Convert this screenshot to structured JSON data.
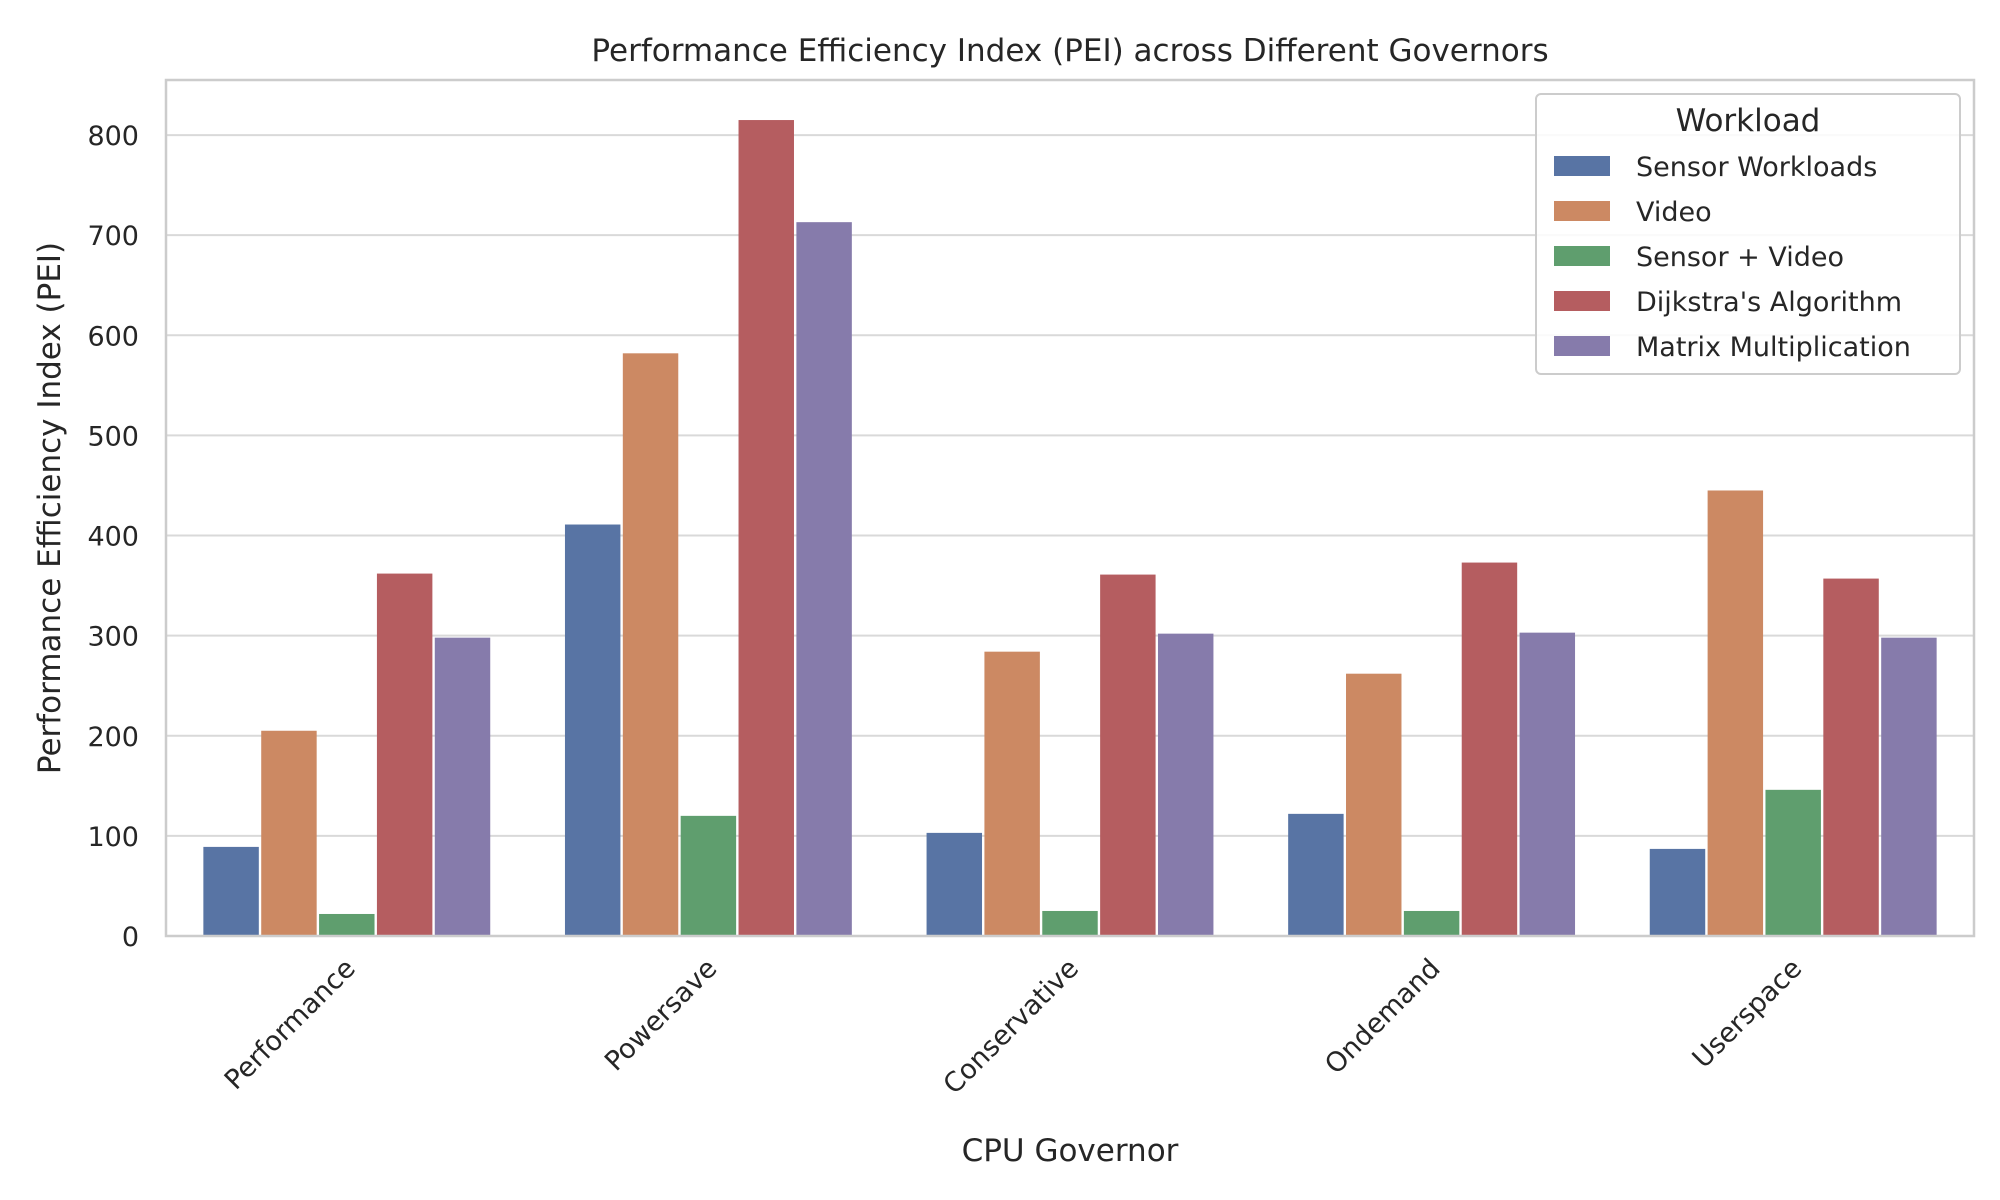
{
  "chart_data": {
    "type": "bar",
    "title": "Performance Efficiency Index (PEI) across Different Governors",
    "xlabel": "CPU Governor",
    "ylabel": "Performance Efficiency Index (PEI)",
    "categories": [
      "Performance",
      "Powersave",
      "Conservative",
      "Ondemand",
      "Userspace"
    ],
    "ylim": [
      0,
      855
    ],
    "yticks": [
      0,
      100,
      200,
      300,
      400,
      500,
      600,
      700,
      800
    ],
    "grid": true,
    "legend": {
      "title": "Workload",
      "placement": "top-right"
    },
    "series": [
      {
        "name": "Sensor Workloads",
        "color": "#5874a4",
        "values": [
          89,
          411,
          103,
          122,
          87
        ]
      },
      {
        "name": "Video",
        "color": "#cc8963",
        "values": [
          205,
          582,
          284,
          262,
          445
        ]
      },
      {
        "name": "Sensor + Video",
        "color": "#5f9e6e",
        "values": [
          22,
          120,
          25,
          25,
          146
        ]
      },
      {
        "name": "Dijkstra's Algorithm",
        "color": "#b55d60",
        "values": [
          362,
          815,
          361,
          373,
          357
        ]
      },
      {
        "name": "Matrix Multiplication",
        "color": "#867bab",
        "values": [
          298,
          713,
          302,
          303,
          298
        ]
      }
    ]
  }
}
